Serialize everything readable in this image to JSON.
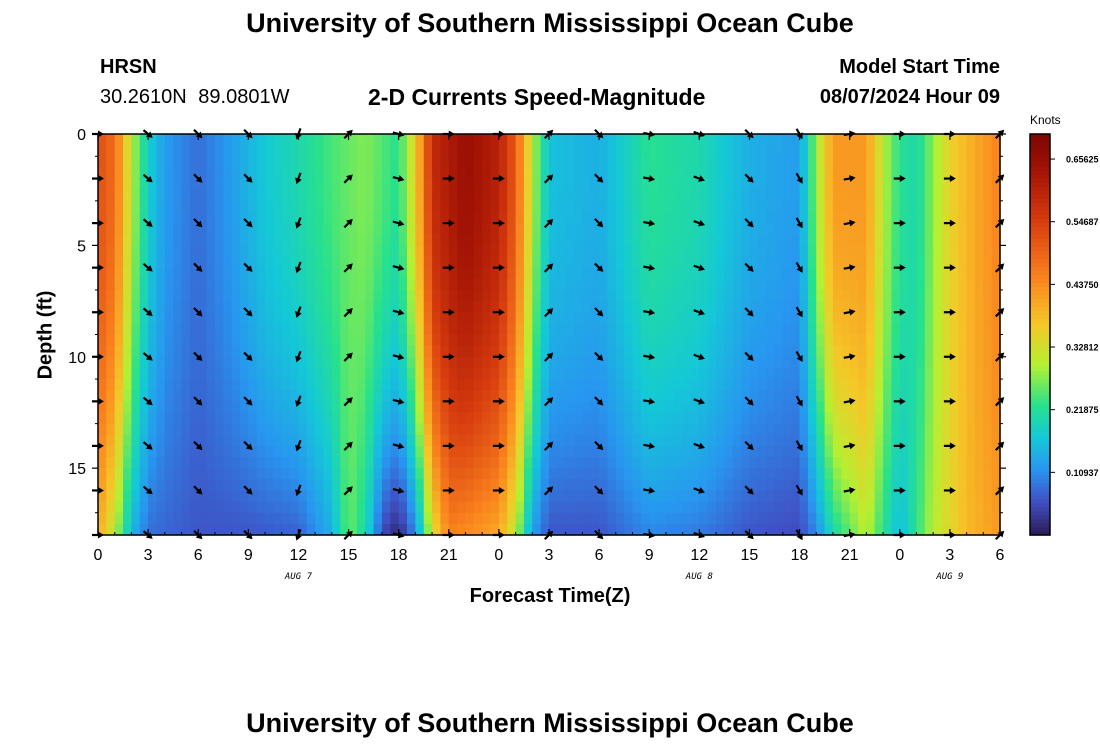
{
  "header": {
    "title": "University of Southern Mississippi Ocean Cube",
    "station": "HRSN",
    "coordinates": "30.2610N  89.0801W",
    "subtitle": "2-D Currents Speed-Magnitude",
    "model_start_label": "Model Start Time",
    "model_start_value": "08/07/2024 Hour 09"
  },
  "footer": {
    "title": "University of Southern Mississippi Ocean Cube"
  },
  "chart_data": {
    "type": "heatmap",
    "title": "2-D Currents Speed-Magnitude",
    "xlabel": "Forecast Time(Z)",
    "ylabel": "Depth (ft)",
    "xlim": [
      0,
      54
    ],
    "ylim": [
      0,
      18
    ],
    "y_inverted": true,
    "x_ticks": [
      0,
      3,
      6,
      9,
      12,
      15,
      18,
      21,
      24,
      27,
      30,
      33,
      36,
      39,
      42,
      45,
      48,
      51,
      54
    ],
    "x_tick_labels": [
      "0",
      "3",
      "6",
      "9",
      "12",
      "15",
      "18",
      "21",
      "0",
      "3",
      "6",
      "9",
      "12",
      "15",
      "18",
      "21",
      "0",
      "3",
      "6"
    ],
    "y_ticks": [
      0,
      5,
      10,
      15
    ],
    "y_tick_labels": [
      "0",
      "5",
      "10",
      "15"
    ],
    "date_labels": [
      {
        "hour": 12,
        "text": "AUG 7"
      },
      {
        "hour": 36,
        "text": "AUG 8"
      },
      {
        "hour": 51,
        "text": "AUG 9"
      }
    ],
    "colorbar": {
      "unit": "Knots",
      "min": 0.0,
      "max": 0.7,
      "ticks": [
        0.10937,
        0.21875,
        0.32812,
        0.4375,
        0.54687,
        0.65625
      ],
      "tick_labels": [
        "0.10937",
        "0.21875",
        "0.32812",
        "0.43750",
        "0.54687",
        "0.65625"
      ]
    },
    "surface_speed_by_hour": [
      {
        "hour": 0,
        "speed": 0.52
      },
      {
        "hour": 1,
        "speed": 0.48
      },
      {
        "hour": 2,
        "speed": 0.3
      },
      {
        "hour": 3,
        "speed": 0.18
      },
      {
        "hour": 4,
        "speed": 0.12
      },
      {
        "hour": 6,
        "speed": 0.08
      },
      {
        "hour": 8,
        "speed": 0.12
      },
      {
        "hour": 10,
        "speed": 0.17
      },
      {
        "hour": 12,
        "speed": 0.2
      },
      {
        "hour": 14,
        "speed": 0.24
      },
      {
        "hour": 16,
        "speed": 0.27
      },
      {
        "hour": 18,
        "speed": 0.22
      },
      {
        "hour": 19,
        "speed": 0.35
      },
      {
        "hour": 20,
        "speed": 0.58
      },
      {
        "hour": 22,
        "speed": 0.65
      },
      {
        "hour": 24,
        "speed": 0.6
      },
      {
        "hour": 25,
        "speed": 0.5
      },
      {
        "hour": 26,
        "speed": 0.3
      },
      {
        "hour": 27,
        "speed": 0.16
      },
      {
        "hour": 30,
        "speed": 0.14
      },
      {
        "hour": 33,
        "speed": 0.22
      },
      {
        "hour": 36,
        "speed": 0.2
      },
      {
        "hour": 39,
        "speed": 0.14
      },
      {
        "hour": 42,
        "speed": 0.12
      },
      {
        "hour": 43,
        "speed": 0.28
      },
      {
        "hour": 44,
        "speed": 0.42
      },
      {
        "hour": 46,
        "speed": 0.42
      },
      {
        "hour": 47,
        "speed": 0.3
      },
      {
        "hour": 48,
        "speed": 0.22
      },
      {
        "hour": 49,
        "speed": 0.2
      },
      {
        "hour": 51,
        "speed": 0.35
      },
      {
        "hour": 54,
        "speed": 0.45
      }
    ],
    "bottom_speed_by_hour": [
      {
        "hour": 0,
        "speed": 0.4
      },
      {
        "hour": 1,
        "speed": 0.3
      },
      {
        "hour": 2,
        "speed": 0.15
      },
      {
        "hour": 3,
        "speed": 0.08
      },
      {
        "hour": 6,
        "speed": 0.06
      },
      {
        "hour": 9,
        "speed": 0.06
      },
      {
        "hour": 12,
        "speed": 0.07
      },
      {
        "hour": 14,
        "speed": 0.14
      },
      {
        "hour": 15,
        "speed": 0.26
      },
      {
        "hour": 16,
        "speed": 0.2
      },
      {
        "hour": 17,
        "speed": 0.05
      },
      {
        "hour": 18,
        "speed": 0.01
      },
      {
        "hour": 19,
        "speed": 0.1
      },
      {
        "hour": 20,
        "speed": 0.32
      },
      {
        "hour": 21,
        "speed": 0.45
      },
      {
        "hour": 24,
        "speed": 0.4
      },
      {
        "hour": 25,
        "speed": 0.3
      },
      {
        "hour": 26,
        "speed": 0.12
      },
      {
        "hour": 27,
        "speed": 0.06
      },
      {
        "hour": 30,
        "speed": 0.06
      },
      {
        "hour": 33,
        "speed": 0.1
      },
      {
        "hour": 36,
        "speed": 0.09
      },
      {
        "hour": 39,
        "speed": 0.06
      },
      {
        "hour": 42,
        "speed": 0.05
      },
      {
        "hour": 43,
        "speed": 0.1
      },
      {
        "hour": 44,
        "speed": 0.2
      },
      {
        "hour": 46,
        "speed": 0.3
      },
      {
        "hour": 47,
        "speed": 0.22
      },
      {
        "hour": 48,
        "speed": 0.15
      },
      {
        "hour": 50,
        "speed": 0.3
      },
      {
        "hour": 52,
        "speed": 0.38
      },
      {
        "hour": 54,
        "speed": 0.42
      }
    ],
    "vector_hours": [
      0,
      3,
      6,
      9,
      12,
      15,
      18,
      21,
      24,
      27,
      30,
      33,
      36,
      39,
      42,
      45,
      48,
      51,
      54
    ],
    "vector_depths": [
      0,
      2,
      4,
      6,
      8,
      10,
      12,
      14,
      16,
      18
    ],
    "vector_direction_deg_by_hour": [
      90,
      130,
      135,
      135,
      200,
      45,
      105,
      90,
      90,
      45,
      135,
      100,
      110,
      135,
      150,
      80,
      90,
      90,
      45
    ]
  }
}
